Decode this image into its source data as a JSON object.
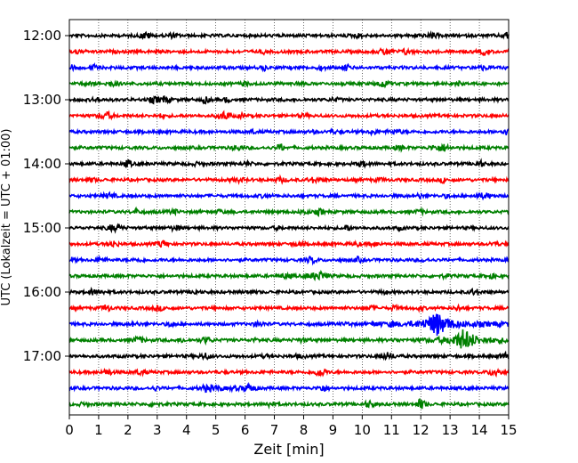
{
  "chart_data": {
    "type": "line",
    "title": "",
    "xlabel": "Zeit  [min]",
    "ylabel": "UTC (Lokalzeit = UTC + 01:00)",
    "xlim": [
      0,
      15
    ],
    "x_ticks": [
      "0",
      "1",
      "2",
      "3",
      "4",
      "5",
      "6",
      "7",
      "8",
      "9",
      "10",
      "11",
      "12",
      "13",
      "14",
      "15"
    ],
    "y_tick_labels": [
      "12:00",
      "13:00",
      "14:00",
      "15:00",
      "16:00",
      "17:00"
    ],
    "y_tick_hours": [
      0,
      1,
      2,
      3,
      4,
      5
    ],
    "trace_interval_minutes": 15,
    "trace_start": "12:00",
    "trace_count": 24,
    "trace_colors": [
      "#000000",
      "#ff0000",
      "#0000ff",
      "#008000"
    ],
    "grid": "vertical dotted",
    "events": [
      {
        "trace_index": 18,
        "center_min": 12.55,
        "amplitude": 12,
        "width_min": 0.55,
        "onset_min": 10.4
      },
      {
        "trace_index": 19,
        "center_min": 13.5,
        "amplitude": 11,
        "width_min": 0.45,
        "onset_min": 11.4
      },
      {
        "trace_index": 22,
        "center_min": 6.25,
        "amplitude": 4,
        "width_min": 0.05,
        "onset_min": 6.2
      }
    ]
  }
}
